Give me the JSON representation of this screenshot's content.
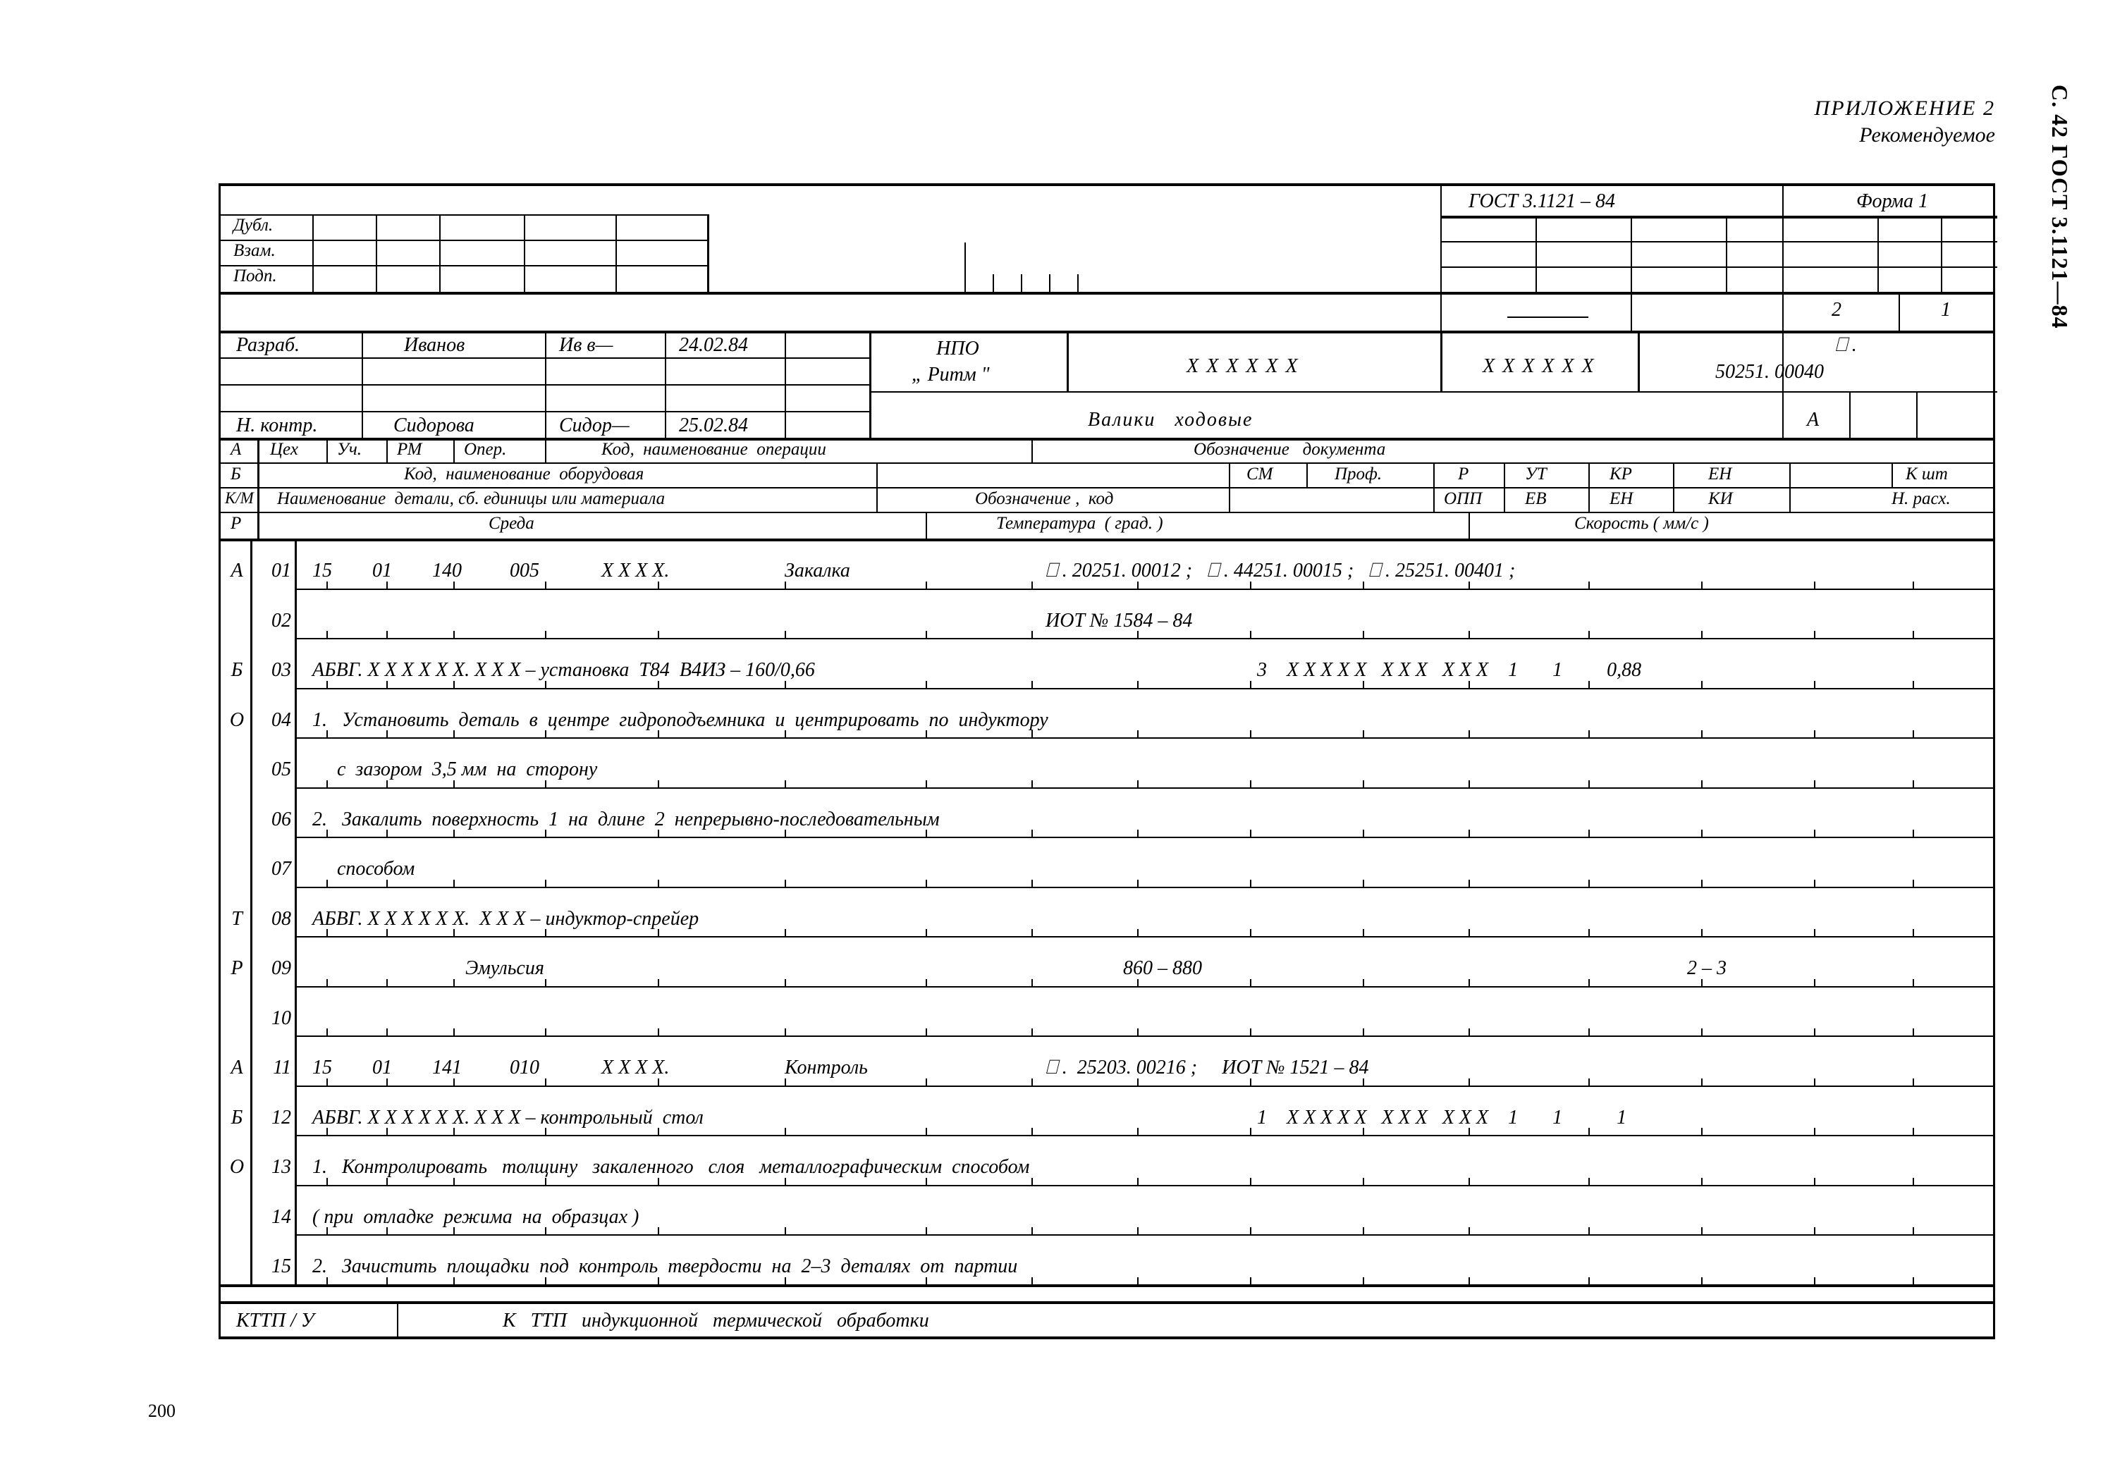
{
  "side_header": "С. 42 ГОСТ 3.1121—84",
  "top_labels": {
    "l1": "ПРИЛОЖЕНИЕ 2",
    "l2": "Рекомендуемое"
  },
  "page_number": "200",
  "header": {
    "gost": "ГОСТ 3.1121 – 84",
    "form": "Форма 1",
    "dubl": "Дубл.",
    "vzam": "Взам.",
    "podp": "Подп.",
    "sheet_total": "2",
    "sheet": "1"
  },
  "approval": {
    "razrab_lbl": "Разраб.",
    "razrab_name": "Иванов",
    "razrab_sig": "Ив в—",
    "razrab_date": "24.02.84",
    "nkontr_lbl": "Н. контр.",
    "nkontr_name": "Сидорова",
    "nkontr_sig": "Сидор—",
    "nkontr_date": "25.02.84",
    "org_line1": "НПО",
    "org_line2": "„ Ритм \"",
    "code1": "X X X X X X",
    "code2": "X X X X X X",
    "doc_no_top": "⎕ .",
    "doc_no": "50251. 00040",
    "part_name": "Валики   ходовые",
    "lit": "А"
  },
  "col_headers": {
    "A": "А",
    "B": "Б",
    "KM": "К/М",
    "R": "Р",
    "ceh": "Цех",
    "uch": "Уч.",
    "rm": "РМ",
    "oper": "Опер.",
    "op_name": "Код,  наименование  операции",
    "ob_name": "Код,  наименование  оборудовая",
    "det_name": "Наименование  детали, сб. единицы или материала",
    "sreda": "Среда",
    "ob_doc": "Обозначение   документа",
    "sm": "СМ",
    "prof": "Проф.",
    "r": "Р",
    "ut": "УТ",
    "kr": "КР",
    "en": "ЕН",
    "ksh": "К шт",
    "ob_kod": "Обозначение ,  код",
    "opp": "ОПП",
    "ev": "ЕВ",
    "en2": "ЕН",
    "ki": "КИ",
    "nras": "Н. расх.",
    "temp": "Температура  ( град. )",
    "speed": "Скорость ( мм/с )"
  },
  "rows": [
    {
      "n": "01",
      "let": "А",
      "ceh": "15",
      "uch": "01",
      "rm": "140",
      "oper": "005",
      "kod": "X X X X.",
      "name": "Закалка",
      "right": "⎕ . 20251. 00012 ;   ⎕ . 44251. 00015 ;   ⎕ . 25251. 00401 ;"
    },
    {
      "n": "02",
      "let": "",
      "text": "",
      "right": "ИОТ № 1584 – 84"
    },
    {
      "n": "03",
      "let": "Б",
      "text": "АБВГ. X X X X X X. X X X – установка  Т84  В4ИЗ – 160/0,66",
      "tail": "3    X X X X X   X X X   X X X    1       1         0,88"
    },
    {
      "n": "04",
      "let": "О",
      "text": "1.   Установить  деталь  в  центре  гидроподъемника  и  центрировать  по  индуктору"
    },
    {
      "n": "05",
      "let": "",
      "text": "     с  зазором  3,5 мм  на  сторону"
    },
    {
      "n": "06",
      "let": "",
      "text": "2.   Закалить  поверхность  1  на  длине  2  непрерывно-последовательным"
    },
    {
      "n": "07",
      "let": "",
      "text": "     способом"
    },
    {
      "n": "08",
      "let": "Т",
      "text": "АБВГ. X X X X X X.  X X X – индуктор-спрейер"
    },
    {
      "n": "09",
      "let": "Р",
      "text": "                               Эмульсия",
      "mid": "860 – 880",
      "speed": "2 – 3"
    },
    {
      "n": "10",
      "let": "",
      "text": ""
    },
    {
      "n": "11",
      "let": "А",
      "ceh": "15",
      "uch": "01",
      "rm": "141",
      "oper": "010",
      "kod": "X X X X.",
      "name": "Контроль",
      "right": "⎕ .  25203. 00216 ;     ИОТ № 1521 – 84"
    },
    {
      "n": "12",
      "let": "Б",
      "text": "АБВГ. X X X X X X. X X X – контрольный  стол",
      "tail": "1    X X X X X   X X X   X X X    1       1           1"
    },
    {
      "n": "13",
      "let": "О",
      "text": "1.   Контролировать   толщину   закаленного   слоя   металлографическим  способом"
    },
    {
      "n": "14",
      "let": "",
      "text": "( при  отладке  режима  на  образцах )"
    },
    {
      "n": "15",
      "let": "",
      "text": "2.   Зачистить  площадки  под  контроль  твердости  на  2–3  деталях  от  партии"
    }
  ],
  "footer": {
    "left": "КТТП / У",
    "text": "К   ТТП   индукционной   термической   обработки"
  }
}
